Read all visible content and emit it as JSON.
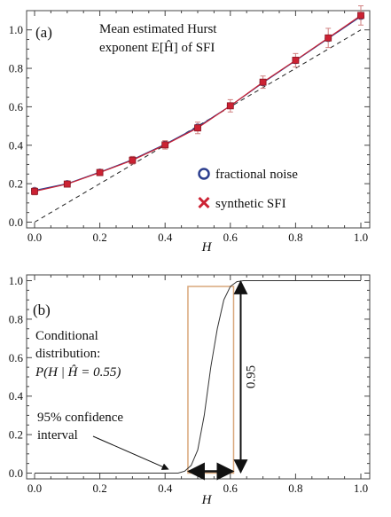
{
  "chart_data": [
    {
      "type": "scatter",
      "panel_label": "(a)",
      "annotation_lines": [
        "Mean estimated Hurst",
        "exponent E[Ĥ] of SFI"
      ],
      "xlabel": "H",
      "ylabel": "",
      "xlim": [
        0,
        1
      ],
      "ylim": [
        -0.03,
        1.1
      ],
      "x_ticks": [
        "0.0",
        "0.2",
        "0.4",
        "0.6",
        "0.8",
        "1.0"
      ],
      "y_ticks": [
        "0.0",
        "0.2",
        "0.4",
        "0.6",
        "0.8",
        "1.0"
      ],
      "grid": false,
      "legend_position": "bottom-right",
      "legend_entries": [
        {
          "label": "fractional noise",
          "marker": "open-circle",
          "color": "#2c3f8f"
        },
        {
          "label": "synthetic SFI",
          "marker": "cross",
          "color": "#cc2233"
        }
      ],
      "reference_line": {
        "style": "dashed",
        "from": [
          0,
          0
        ],
        "to": [
          1,
          1
        ],
        "color": "#222222"
      },
      "series": [
        {
          "name": "fractional noise",
          "color": "#2c3f8f",
          "x": [
            0.0,
            0.1,
            0.2,
            0.3,
            0.4,
            0.5,
            0.6,
            0.7,
            0.8,
            0.9,
            1.0
          ],
          "y": [
            0.165,
            0.2,
            0.26,
            0.325,
            0.405,
            0.495,
            0.605,
            0.725,
            0.84,
            0.955,
            1.07
          ]
        },
        {
          "name": "synthetic SFI",
          "color": "#cc2233",
          "x": [
            0.0,
            0.1,
            0.2,
            0.3,
            0.4,
            0.5,
            0.6,
            0.7,
            0.8,
            0.9,
            1.0
          ],
          "y": [
            0.16,
            0.198,
            0.258,
            0.322,
            0.402,
            0.49,
            0.605,
            0.728,
            0.842,
            0.958,
            1.075
          ],
          "error": [
            0.018,
            0.015,
            0.016,
            0.02,
            0.022,
            0.03,
            0.032,
            0.032,
            0.035,
            0.05,
            0.05
          ]
        }
      ]
    },
    {
      "type": "line",
      "panel_label": "(b)",
      "annotation_lines": [
        "Conditional",
        "distribution:",
        "P(H | Ĥ = 0.55)"
      ],
      "interval_label_lines": [
        "95% confidence",
        "interval"
      ],
      "probability_label": "0.95",
      "xlabel": "H",
      "ylabel": "",
      "xlim": [
        0,
        1
      ],
      "ylim": [
        -0.03,
        1.03
      ],
      "x_ticks": [
        "0.0",
        "0.2",
        "0.4",
        "0.6",
        "0.8",
        "1.0"
      ],
      "y_ticks": [
        "0.0",
        "0.2",
        "0.4",
        "0.6",
        "0.8",
        "1.0"
      ],
      "grid": false,
      "cdf_curve": {
        "color": "#333333",
        "x": [
          0.0,
          0.44,
          0.46,
          0.48,
          0.5,
          0.52,
          0.54,
          0.56,
          0.58,
          0.6,
          0.62,
          0.64,
          1.0
        ],
        "y": [
          0.0,
          0.0,
          0.01,
          0.04,
          0.12,
          0.3,
          0.55,
          0.75,
          0.9,
          0.97,
          0.995,
          1.0,
          1.0
        ]
      },
      "confidence_interval": {
        "from": 0.47,
        "to": 0.61,
        "height": 0.97,
        "color": "#d9a77a"
      }
    }
  ]
}
